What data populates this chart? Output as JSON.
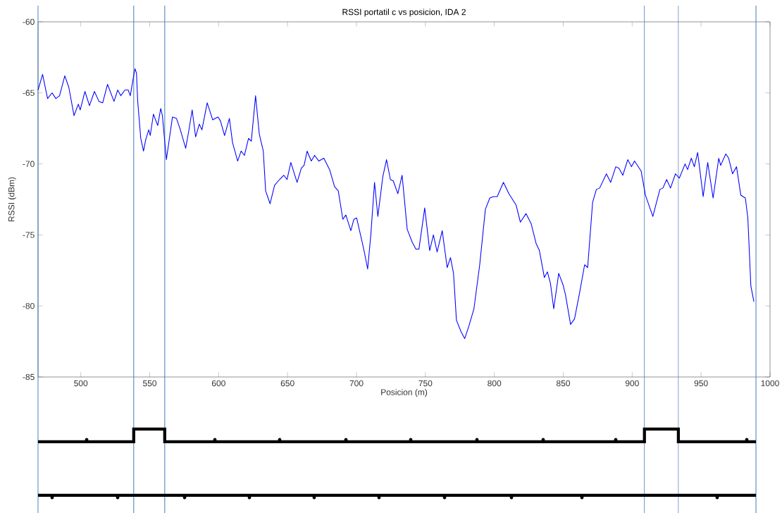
{
  "chart_data": {
    "type": "line",
    "title": "RSSI portatil c vs posicion, IDA 2",
    "xlabel": "Posicion (m)",
    "ylabel": "RSSI (dBm)",
    "xlim": [
      469,
      1000
    ],
    "ylim": [
      -85,
      -60
    ],
    "xticks": [
      500,
      550,
      600,
      650,
      700,
      750,
      800,
      850,
      900,
      950,
      1000
    ],
    "yticks": [
      -85,
      -80,
      -75,
      -70,
      -65,
      -60
    ],
    "ref_lines": [
      {
        "axis": "x",
        "value": 469,
        "color": "#4f81bd"
      },
      {
        "axis": "x",
        "value": 538.4,
        "color": "#4f81bd"
      },
      {
        "axis": "x",
        "value": 560.9,
        "color": "#4f81bd"
      },
      {
        "axis": "x",
        "value": 908.9,
        "color": "#4f81bd"
      },
      {
        "axis": "x",
        "value": 933.5,
        "color": "#4f81bd"
      },
      {
        "axis": "x",
        "value": 989.8,
        "color": "#4f81bd"
      }
    ],
    "series": [
      {
        "color": "#0000ff",
        "x": [
          469,
          472.3,
          475.9,
          479.2,
          481.9,
          484.6,
          488.4,
          491.3,
          495.1,
          498.2,
          499.6,
          503,
          506.3,
          509.9,
          513.2,
          515.9,
          519.4,
          524.1,
          526.8,
          529,
          532,
          534.4,
          535.9,
          538,
          539.3,
          540.4,
          541.3,
          543.5,
          545.5,
          547.1,
          549.3,
          550.4,
          552.7,
          555.8,
          558,
          559.2,
          562.1,
          566.5,
          569.4,
          571.9,
          576.1,
          578.3,
          580.8,
          583.3,
          586,
          587.9,
          591.7,
          595.7,
          599.6,
          601.4,
          604.3,
          607.8,
          610.1,
          613.8,
          616.3,
          618.7,
          621.7,
          623.7,
          626.8,
          629.5,
          632.4,
          634.1,
          637.3,
          640.6,
          644.2,
          647.3,
          649.6,
          652.4,
          656.9,
          660,
          662,
          664.2,
          667.2,
          669.6,
          672.7,
          676.3,
          680.5,
          684.1,
          686.8,
          690.1,
          692.3,
          695.9,
          698.1,
          700.1,
          704.1,
          705.9,
          708.1,
          710.4,
          713.1,
          715.5,
          719.1,
          721.8,
          724.6,
          726.7,
          730,
          733.1,
          736.8,
          740.4,
          743.1,
          745.3,
          749.5,
          753.1,
          755.8,
          758.5,
          762.2,
          765.8,
          768.2,
          770.4,
          772.5,
          775.8,
          778.5,
          781.6,
          785.2,
          789.4,
          793.5,
          796.7,
          799.4,
          802.1,
          806.6,
          810.6,
          815.8,
          818.9,
          823,
          826.7,
          830.3,
          832.7,
          836.3,
          838.5,
          840.7,
          843.1,
          846.7,
          849.8,
          851.6,
          855.3,
          858.2,
          861.8,
          865.5,
          867.7,
          871.3,
          874,
          876.4,
          881.3,
          884.4,
          888.1,
          890.4,
          893.2,
          896.8,
          899.5,
          901.7,
          906.5,
          909.6,
          915,
          920.1,
          922.3,
          925,
          927.8,
          931.4,
          934.2,
          938.4,
          940.2,
          942.9,
          945.1,
          947.5,
          951.5,
          954.8,
          958.7,
          962.8,
          964.2,
          967.9,
          970,
          972.8,
          975.7,
          978.8,
          982.1,
          983.9,
          986.1,
          988.3
        ],
        "values": [
          -64.8,
          -63.7,
          -65.4,
          -65.0,
          -65.4,
          -65.2,
          -63.8,
          -64.6,
          -66.6,
          -65.8,
          -66.2,
          -64.9,
          -65.9,
          -64.9,
          -65.6,
          -65.7,
          -64.4,
          -65.6,
          -64.8,
          -65.2,
          -64.8,
          -64.8,
          -65.2,
          -64.0,
          -63.3,
          -63.6,
          -65.6,
          -68.2,
          -69.1,
          -68.3,
          -67.6,
          -68.0,
          -66.5,
          -67.3,
          -66.1,
          -66.6,
          -69.7,
          -66.7,
          -66.8,
          -67.5,
          -68.9,
          -67.7,
          -66.2,
          -68.1,
          -67.2,
          -67.6,
          -65.7,
          -66.9,
          -66.7,
          -67.0,
          -68.0,
          -66.8,
          -68.5,
          -69.8,
          -69.1,
          -69.4,
          -68.2,
          -68.4,
          -65.2,
          -67.9,
          -69.1,
          -71.9,
          -72.8,
          -71.5,
          -71.1,
          -70.8,
          -71.1,
          -69.9,
          -71.3,
          -70.3,
          -70.1,
          -69.1,
          -69.8,
          -69.4,
          -69.8,
          -69.6,
          -70.4,
          -71.6,
          -71.9,
          -73.9,
          -73.6,
          -74.7,
          -73.9,
          -73.8,
          -75.5,
          -76.3,
          -77.4,
          -75.0,
          -71.3,
          -73.7,
          -70.9,
          -69.7,
          -71.1,
          -71.2,
          -72.1,
          -70.8,
          -74.6,
          -75.5,
          -76.0,
          -76.0,
          -73.1,
          -76.1,
          -75.0,
          -76.2,
          -74.7,
          -77.3,
          -76.6,
          -77.7,
          -81.0,
          -81.8,
          -82.3,
          -81.4,
          -80.2,
          -77.1,
          -73.2,
          -72.4,
          -72.3,
          -72.3,
          -71.3,
          -72.1,
          -72.9,
          -74.1,
          -73.5,
          -74.2,
          -75.6,
          -76.1,
          -78.0,
          -77.6,
          -78.4,
          -80.2,
          -77.7,
          -78.5,
          -79.2,
          -81.3,
          -80.9,
          -79.1,
          -77.1,
          -77.3,
          -72.7,
          -71.8,
          -71.7,
          -70.7,
          -71.3,
          -70.2,
          -70.3,
          -70.8,
          -69.7,
          -70.2,
          -69.8,
          -70.5,
          -72.2,
          -73.7,
          -71.8,
          -71.7,
          -71.1,
          -71.7,
          -70.7,
          -71.0,
          -70.0,
          -70.4,
          -69.6,
          -70.2,
          -69.2,
          -72.3,
          -69.9,
          -72.4,
          -69.6,
          -70.1,
          -69.3,
          -69.6,
          -70.7,
          -70.2,
          -72.2,
          -72.4,
          -73.8,
          -78.6,
          -79.7
        ]
      }
    ]
  }
}
